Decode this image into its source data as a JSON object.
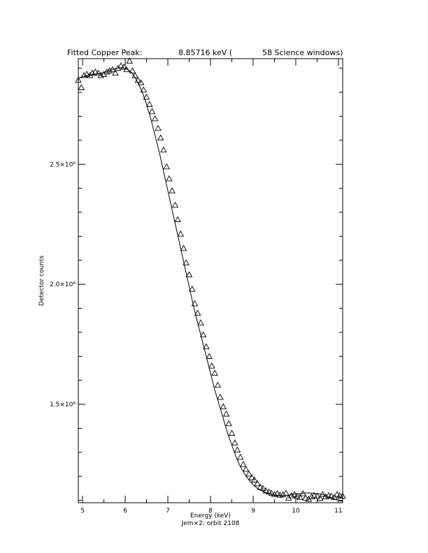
{
  "chart_data": {
    "type": "scatter",
    "title_parts": [
      "Fitted Copper Peak:",
      "8.85716 keV (",
      "58 Science windows)"
    ],
    "xlabel": "Energy (keV)",
    "subtitle": "Jem×2: orbit 2108",
    "ylabel": "Detector counts",
    "xlim": [
      4.9,
      11.1
    ],
    "ylim": [
      1090000,
      2940000
    ],
    "xticks": [
      {
        "value": 5,
        "label": "5"
      },
      {
        "value": 6,
        "label": "6"
      },
      {
        "value": 7,
        "label": "7"
      },
      {
        "value": 8,
        "label": "8"
      },
      {
        "value": 9,
        "label": "9"
      },
      {
        "value": 10,
        "label": "10"
      },
      {
        "value": 11,
        "label": "11"
      }
    ],
    "yticks": [
      {
        "value": 1500000,
        "label": "1.5×10⁶"
      },
      {
        "value": 2000000,
        "label": "2.0×10⁶"
      },
      {
        "value": 2500000,
        "label": "2.5×10⁶"
      }
    ],
    "grid": false,
    "points": {
      "marker": "triangle",
      "x": [
        4.9,
        4.97,
        5.03,
        5.1,
        5.17,
        5.23,
        5.3,
        5.37,
        5.43,
        5.5,
        5.57,
        5.63,
        5.7,
        5.77,
        5.83,
        5.9,
        5.97,
        6.03,
        6.1,
        6.17,
        6.23,
        6.3,
        6.37,
        6.43,
        6.5,
        6.57,
        6.63,
        6.7,
        6.77,
        6.83,
        6.9,
        6.97,
        7.03,
        7.1,
        7.17,
        7.23,
        7.3,
        7.37,
        7.43,
        7.5,
        7.57,
        7.63,
        7.7,
        7.77,
        7.83,
        7.9,
        7.97,
        8.03,
        8.1,
        8.17,
        8.23,
        8.3,
        8.37,
        8.43,
        8.5,
        8.57,
        8.63,
        8.7,
        8.77,
        8.83,
        8.9,
        8.97,
        9.03,
        9.1,
        9.17,
        9.23,
        9.3,
        9.37,
        9.43,
        9.5,
        9.57,
        9.63,
        9.7,
        9.77,
        9.83,
        9.9,
        9.97,
        10.03,
        10.1,
        10.17,
        10.23,
        10.3,
        10.37,
        10.43,
        10.5,
        10.57,
        10.63,
        10.7,
        10.77,
        10.83,
        10.9,
        10.97,
        11.03,
        11.1
      ],
      "y": [
        2850000,
        2820000,
        2870000,
        2875000,
        2870000,
        2880000,
        2885000,
        2880000,
        2870000,
        2875000,
        2885000,
        2890000,
        2895000,
        2880000,
        2900000,
        2910000,
        2905000,
        2895000,
        2930000,
        2890000,
        2870000,
        2850000,
        2840000,
        2810000,
        2780000,
        2750000,
        2720000,
        2690000,
        2650000,
        2610000,
        2560000,
        2490000,
        2440000,
        2390000,
        2330000,
        2270000,
        2210000,
        2150000,
        2090000,
        2040000,
        1980000,
        1920000,
        1880000,
        1840000,
        1790000,
        1740000,
        1700000,
        1660000,
        1630000,
        1580000,
        1530000,
        1490000,
        1460000,
        1420000,
        1380000,
        1340000,
        1310000,
        1280000,
        1250000,
        1230000,
        1210000,
        1195000,
        1185000,
        1170000,
        1155000,
        1150000,
        1140000,
        1135000,
        1130000,
        1125000,
        1128000,
        1122000,
        1124000,
        1130000,
        1110000,
        1120000,
        1125000,
        1118000,
        1112000,
        1128000,
        1110000,
        1105000,
        1115000,
        1120000,
        1118000,
        1108000,
        1125000,
        1115000,
        1120000,
        1118000,
        1112000,
        1125000,
        1120000,
        1118000
      ]
    },
    "fit_curve": {
      "x": [
        4.9,
        5.0,
        5.1,
        5.2,
        5.3,
        5.4,
        5.5,
        5.6,
        5.7,
        5.8,
        5.9,
        6.0,
        6.1,
        6.2,
        6.3,
        6.4,
        6.5,
        6.6,
        6.7,
        6.8,
        6.9,
        7.0,
        7.1,
        7.2,
        7.3,
        7.4,
        7.5,
        7.6,
        7.7,
        7.8,
        7.9,
        8.0,
        8.1,
        8.2,
        8.3,
        8.4,
        8.5,
        8.6,
        8.7,
        8.8,
        8.9,
        9.0,
        9.1,
        9.2,
        9.3,
        9.4,
        9.5,
        9.6,
        9.7,
        9.8,
        9.9,
        10.0,
        10.1,
        10.2,
        10.3,
        10.4,
        10.5,
        10.6,
        10.7,
        10.8,
        10.9,
        11.0,
        11.1
      ],
      "y": [
        2860000,
        2865000,
        2870000,
        2872000,
        2875000,
        2878000,
        2882000,
        2888000,
        2895000,
        2900000,
        2902000,
        2900000,
        2890000,
        2870000,
        2840000,
        2800000,
        2750000,
        2690000,
        2620000,
        2550000,
        2470000,
        2390000,
        2310000,
        2230000,
        2150000,
        2070000,
        1990000,
        1910000,
        1840000,
        1770000,
        1700000,
        1630000,
        1560000,
        1500000,
        1440000,
        1380000,
        1330000,
        1280000,
        1240000,
        1210000,
        1185000,
        1165000,
        1150000,
        1140000,
        1132000,
        1126000,
        1122000,
        1120000,
        1120000,
        1121000,
        1123000,
        1126000,
        1128000,
        1130000,
        1131000,
        1130000,
        1128000,
        1125000,
        1120000,
        1112000,
        1105000,
        1100000,
        1095000
      ]
    }
  }
}
